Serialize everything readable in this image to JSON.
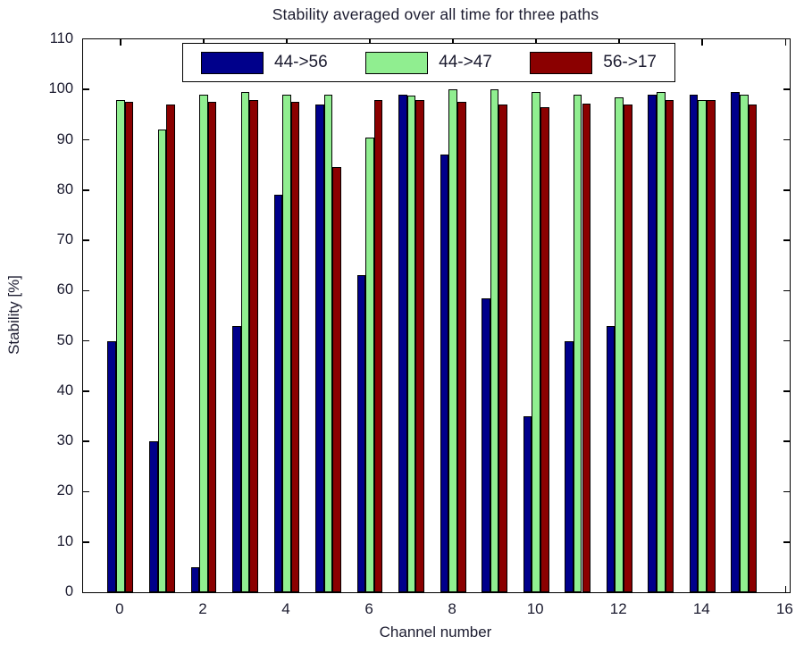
{
  "title": "Stability averaged over all time for three paths",
  "xlabel": "Channel number",
  "ylabel": "Stability [%]",
  "colors": {
    "series_blue": "#00008B",
    "series_green": "#90EE90",
    "series_red": "#8B0000",
    "axis": "#000000",
    "text": "#1b1b2f",
    "background": "#ffffff"
  },
  "chart_data": {
    "type": "bar",
    "title": "Stability averaged over all time for three paths",
    "xlabel": "Channel number",
    "ylabel": "Stability [%]",
    "categories": [
      0,
      1,
      2,
      3,
      4,
      5,
      6,
      7,
      8,
      9,
      10,
      11,
      12,
      13,
      14,
      15
    ],
    "series": [
      {
        "name": "44->56",
        "color": "#00008B",
        "values": [
          50,
          30,
          5,
          53,
          79,
          97,
          63,
          99,
          87,
          58.5,
          35,
          50,
          53,
          99,
          99,
          99.5
        ]
      },
      {
        "name": "44->47",
        "color": "#90EE90",
        "values": [
          98,
          92,
          99,
          99.5,
          99,
          99,
          90.5,
          98.8,
          100,
          100,
          99.5,
          99,
          98.5,
          99.5,
          98,
          99
        ]
      },
      {
        "name": "56->17",
        "color": "#8B0000",
        "values": [
          97.5,
          97,
          97.5,
          98,
          97.5,
          84.5,
          98,
          98,
          97.5,
          97,
          96.5,
          97.2,
          97,
          98,
          98,
          97
        ]
      }
    ],
    "xlim": [
      -0.9,
      16.1
    ],
    "ylim": [
      0,
      110
    ],
    "x_ticks": [
      0,
      2,
      4,
      6,
      8,
      10,
      12,
      14,
      16
    ],
    "y_ticks": [
      0,
      10,
      20,
      30,
      40,
      50,
      60,
      70,
      80,
      90,
      100,
      110
    ],
    "grid": false,
    "legend_position": "top-center-inside"
  }
}
